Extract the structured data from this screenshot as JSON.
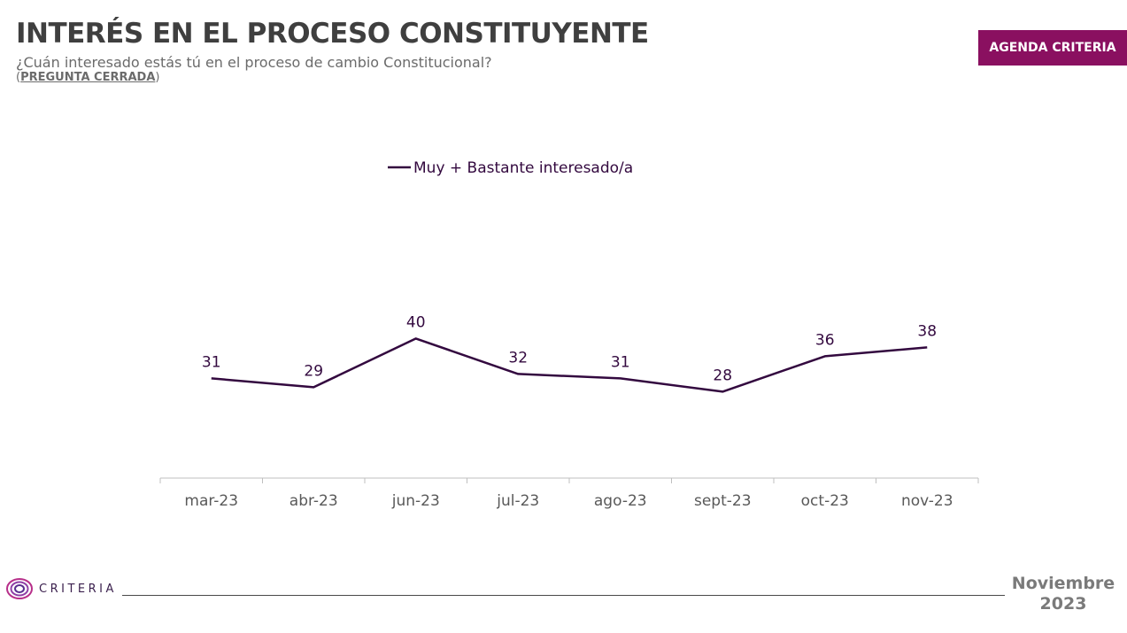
{
  "header": {
    "title": "INTERÉS EN EL PROCESO CONSTITUYENTE",
    "subtitle": "¿Cuán interesado estás tú en el proceso de cambio Constitucional?",
    "question_type_open": "(",
    "question_type": "PREGUNTA CERRADA",
    "question_type_close": ")",
    "badge": "AGENDA CRITERIA"
  },
  "colors": {
    "series": "#33093f",
    "badge": "#8a1060",
    "title": "#3f3f3f",
    "axis": "#bfbfbf"
  },
  "chart_data": {
    "type": "line",
    "categories": [
      "mar-23",
      "abr-23",
      "jun-23",
      "jul-23",
      "ago-23",
      "sept-23",
      "oct-23",
      "nov-23"
    ],
    "series": [
      {
        "name": "Muy + Bastante interesado/a",
        "values": [
          31,
          29,
          40,
          32,
          31,
          28,
          36,
          38
        ]
      }
    ],
    "legend": "top-center",
    "grid": false
  },
  "footer": {
    "logo_text": "CRITERIA",
    "date_line1": "Noviembre",
    "date_line2": "2023"
  }
}
